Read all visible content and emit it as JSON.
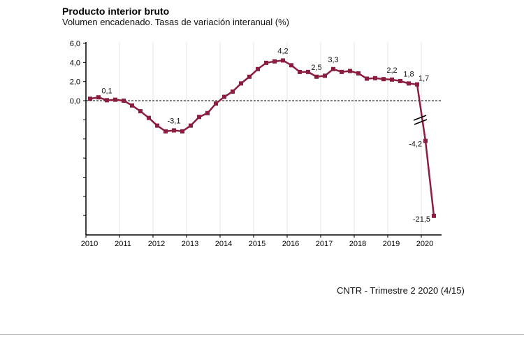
{
  "chart_data": {
    "type": "line",
    "title": "Producto interior bruto",
    "subtitle": "Volumen encadenado. Tasas de variación interanual (%)",
    "source": "CNTR - Trimestre 2 2020 (4/15)",
    "x_tick_labels": [
      "2010",
      "2011",
      "2012",
      "2013",
      "2014",
      "2015",
      "2016",
      "2017",
      "2018",
      "2019",
      "2020"
    ],
    "y_tick_labels": [
      "6,0",
      "4,0",
      "2,0",
      "0,0"
    ],
    "ylim": [
      -21.5,
      6
    ],
    "broken_axis": true,
    "reference_line": 0,
    "line_color": "#8b1e3f",
    "frequency": "quarterly",
    "start": "2010 T1",
    "values": [
      0.2,
      0.35,
      0.05,
      0.1,
      0.0,
      -0.5,
      -1.1,
      -1.8,
      -2.6,
      -3.2,
      -3.1,
      -3.2,
      -2.6,
      -1.7,
      -1.3,
      -0.3,
      0.4,
      0.95,
      1.8,
      2.5,
      3.3,
      3.95,
      4.1,
      4.2,
      3.7,
      3.0,
      3.0,
      2.5,
      2.6,
      3.3,
      3.0,
      3.1,
      2.85,
      2.3,
      2.35,
      2.25,
      2.2,
      2.05,
      1.8,
      1.7,
      -4.2,
      -21.5
    ],
    "data_labels": [
      {
        "index": 2,
        "text": "0,1"
      },
      {
        "index": 10,
        "text": "-3,1"
      },
      {
        "index": 23,
        "text": "4,2"
      },
      {
        "index": 27,
        "text": "2,5"
      },
      {
        "index": 29,
        "text": "3,3"
      },
      {
        "index": 36,
        "text": "2,2"
      },
      {
        "index": 38,
        "text": "1,8"
      },
      {
        "index": 39,
        "text": "1,7"
      },
      {
        "index": 40,
        "text": "-4,2"
      },
      {
        "index": 41,
        "text": "-21,5"
      }
    ]
  }
}
